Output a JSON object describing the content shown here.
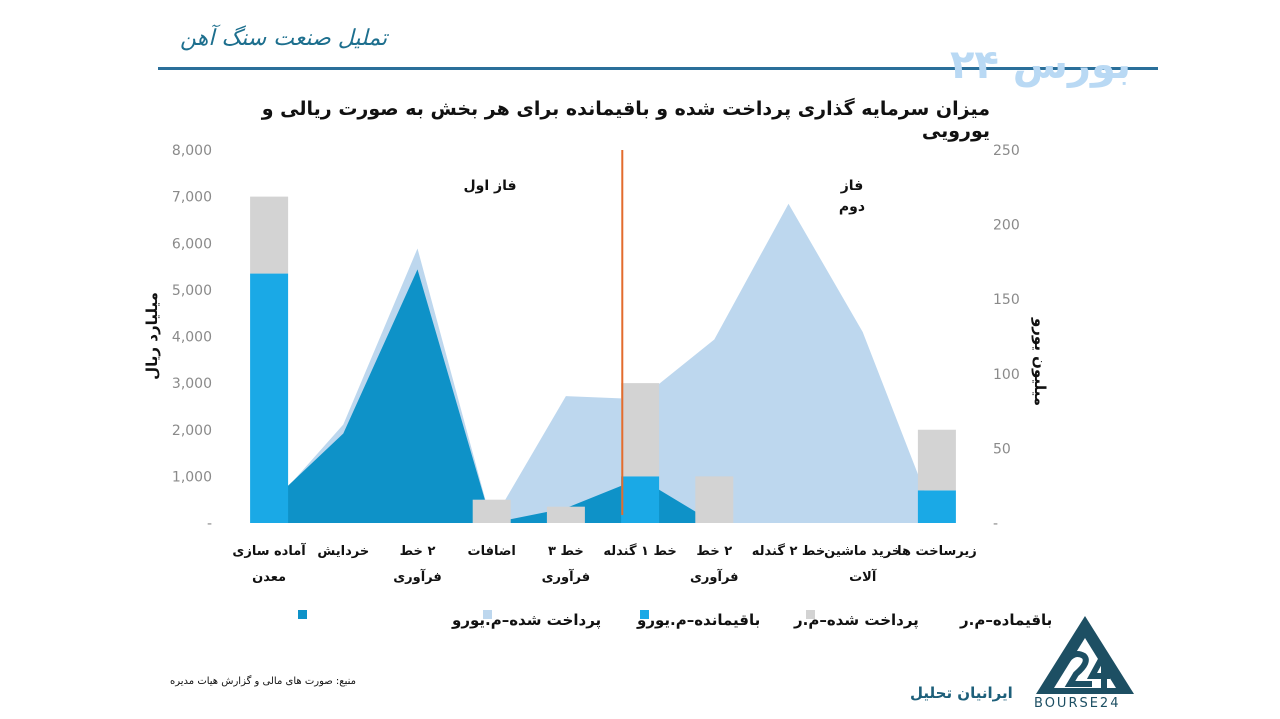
{
  "header": {
    "title": "تملیل صنعت سنگ آهن",
    "brand": "بورس ۲۴",
    "footer_brand": "ایرانیان تحلیل",
    "logo_text": "BOURSE24",
    "source": "منبع: صورت های مالی و گزارش هیات مدیره"
  },
  "chart_data": {
    "type": "bar",
    "title": "میزان سرمایه گذاری پرداخت شده و باقیمانده برای هر بخش به صورت ریالی و یورویی",
    "categories": [
      [
        "آماده سازی",
        "معدن"
      ],
      [
        "خردایش"
      ],
      [
        "۲ خط",
        "فرآوری"
      ],
      [
        "اضافات"
      ],
      [
        "خط ۳",
        "فرآوری"
      ],
      [
        "خط ۱ گندله"
      ],
      [
        "۲ خط",
        "فرآوری"
      ],
      [
        "خط ۲ گندله"
      ],
      [
        "خرید ماشین",
        "آلات"
      ],
      [
        "زیرساخت ها"
      ]
    ],
    "ylabel_left": "میلیارد ریال",
    "ylabel_right": "میلیون یورو",
    "ylim_left": [
      0,
      8000
    ],
    "ylim_right": [
      0,
      250
    ],
    "yticks_left": [
      "-",
      "1,000",
      "2,000",
      "3,000",
      "4,000",
      "5,000",
      "6,000",
      "7,000",
      "8,000"
    ],
    "yticks_right": [
      "-",
      "50",
      "100",
      "150",
      "200",
      "250"
    ],
    "phase_labels": {
      "phase1": "فاز اول",
      "phase2_line1": "فاز",
      "phase2_line2": "دوم"
    },
    "divider_after_category": 6,
    "series": [
      {
        "name": "پرداخت شده–م.ر",
        "axis": "left",
        "kind": "bar-stack-bottom",
        "values": [
          5350,
          0,
          0,
          0,
          0,
          1000,
          0,
          0,
          0,
          700
        ],
        "color": "#1aa9e6"
      },
      {
        "name": "باقیماده–م.ر",
        "axis": "left",
        "kind": "bar-stack-top",
        "values": [
          1650,
          0,
          0,
          500,
          350,
          2000,
          1000,
          0,
          0,
          1300
        ],
        "color": "#d3d3d3"
      },
      {
        "name": "باقیمانده–م.یورو",
        "axis": "right",
        "kind": "area",
        "values": [
          10,
          66,
          184,
          0,
          85,
          83,
          123,
          214,
          128,
          0
        ],
        "color": "#bdd7ee"
      },
      {
        "name": "پرداخت شده–م.یورو",
        "axis": "right",
        "kind": "area",
        "values": [
          13,
          60,
          170,
          0,
          10,
          30,
          0,
          0,
          0,
          0
        ],
        "color": "#0e92c8"
      }
    ],
    "legend_order": [
      "پرداخت شده–م.یورو",
      "باقیمانده–م.یورو",
      "پرداخت شده–م.ر",
      "باقیماده–م.ر"
    ],
    "legend_position": "bottom",
    "divider_color": "#e36c2d",
    "grid": false
  }
}
